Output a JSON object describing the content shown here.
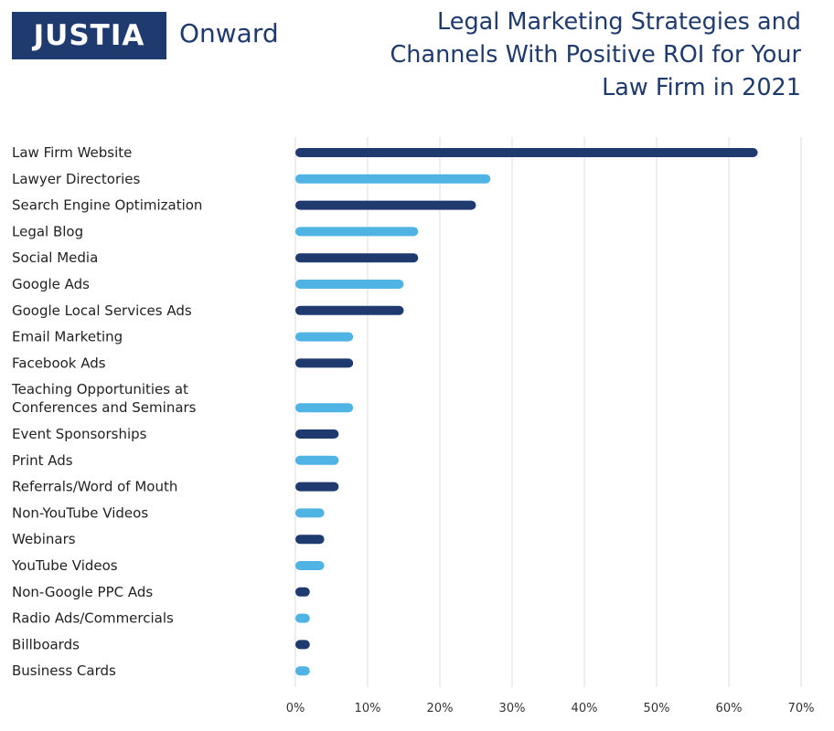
{
  "logo": {
    "brand": "JUSTIA",
    "word": "Onward"
  },
  "colors": {
    "dark": "#1f3a6e",
    "light": "#4fb3e4",
    "grid": "#dcdcdc"
  },
  "chart_data": {
    "type": "bar",
    "orientation": "horizontal",
    "title_lines": [
      "Legal Marketing Strategies and",
      "Channels With Positive ROI for Your",
      "Law Firm in 2021"
    ],
    "categories": [
      [
        "Law Firm Website"
      ],
      [
        "Lawyer Directories"
      ],
      [
        "Search Engine Optimization"
      ],
      [
        "Legal Blog"
      ],
      [
        "Social Media"
      ],
      [
        "Google Ads"
      ],
      [
        "Google Local Services Ads"
      ],
      [
        "Email Marketing"
      ],
      [
        "Facebook Ads"
      ],
      [
        "Teaching Opportunities at",
        "Conferences and Seminars"
      ],
      [
        "Event Sponsorships"
      ],
      [
        "Print Ads"
      ],
      [
        "Referrals/Word of Mouth"
      ],
      [
        "Non-YouTube Videos"
      ],
      [
        "Webinars"
      ],
      [
        "YouTube Videos"
      ],
      [
        "Non-Google PPC Ads"
      ],
      [
        "Radio Ads/Commercials"
      ],
      [
        "Billboards"
      ],
      [
        "Business Cards"
      ]
    ],
    "values": [
      64,
      27,
      25,
      17,
      17,
      15,
      15,
      8,
      8,
      8,
      6,
      6,
      6,
      4,
      4,
      4,
      2,
      2,
      2,
      2
    ],
    "xlim": [
      0,
      70
    ],
    "xticks": [
      "0%",
      "10%",
      "20%",
      "30%",
      "40%",
      "50%",
      "60%",
      "70%"
    ],
    "grid": true,
    "bar_colors": "alternating dark and light blue"
  }
}
